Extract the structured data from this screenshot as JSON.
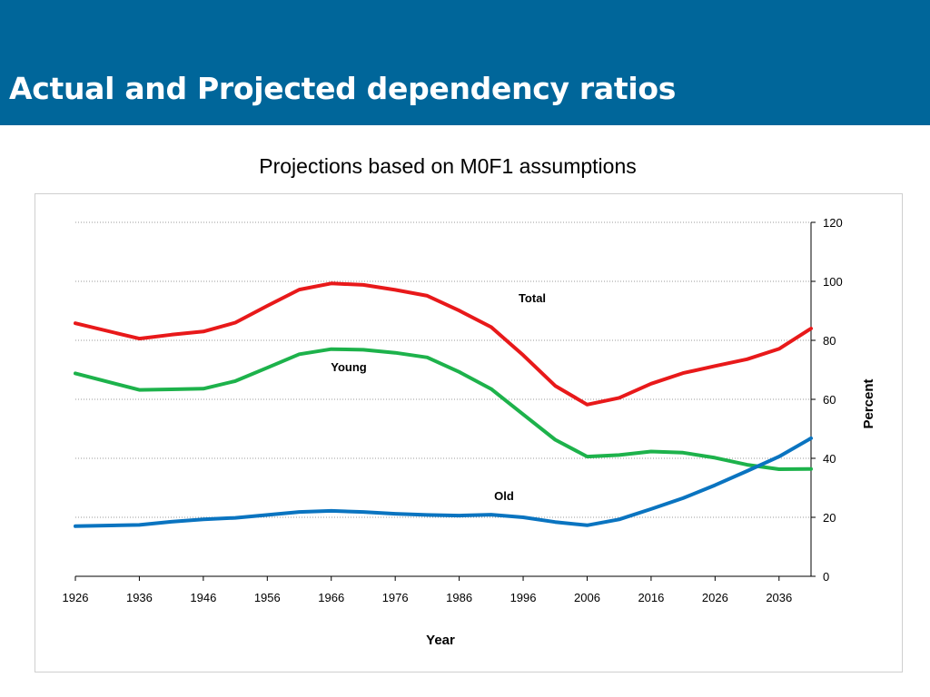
{
  "header": {
    "title": "Actual and Projected dependency ratios"
  },
  "chart_data": {
    "type": "line",
    "title": "Projections based on M0F1 assumptions",
    "xlabel": "Year",
    "ylabel": "Percent",
    "xlim": [
      1926,
      2041
    ],
    "ylim": [
      0,
      120
    ],
    "x_ticks": [
      1926,
      1936,
      1946,
      1956,
      1966,
      1976,
      1986,
      1996,
      2006,
      2016,
      2026,
      2036
    ],
    "x_tick_labels": [
      "1926",
      "1936",
      "1946",
      "1956",
      "1966",
      "1976",
      "1986",
      "1996",
      "2006",
      "2016",
      "2026",
      "2036"
    ],
    "y_ticks": [
      0,
      20,
      40,
      60,
      80,
      100,
      120
    ],
    "y_tick_labels": [
      "0",
      "20",
      "40",
      "60",
      "80",
      "100",
      "120"
    ],
    "y_axis_side": "right",
    "grid": {
      "horizontal": true,
      "style": "dotted"
    },
    "x": [
      1926,
      1936,
      1941,
      1946,
      1951,
      1956,
      1961,
      1966,
      1971,
      1976,
      1981,
      1986,
      1991,
      1996,
      2001,
      2006,
      2011,
      2016,
      2021,
      2026,
      2031,
      2036,
      2041
    ],
    "series": [
      {
        "name": "Total",
        "color": "#e8191a",
        "values": [
          85.8,
          80.6,
          81.9,
          83.0,
          86.0,
          91.7,
          97.2,
          99.3,
          98.8,
          97.1,
          95.1,
          90.1,
          84.5,
          75.0,
          64.6,
          58.2,
          60.5,
          65.3,
          68.9,
          71.3,
          73.6,
          77.1,
          84.0
        ]
      },
      {
        "name": "Young",
        "color": "#1db24b",
        "values": [
          68.8,
          63.2,
          63.4,
          63.6,
          66.2,
          70.7,
          75.3,
          77.0,
          76.8,
          75.8,
          74.2,
          69.3,
          63.5,
          54.9,
          46.3,
          40.6,
          41.1,
          42.3,
          41.9,
          40.2,
          37.8,
          36.3,
          36.4
        ]
      },
      {
        "name": "Old",
        "color": "#0a74c0",
        "values": [
          17.0,
          17.4,
          18.5,
          19.3,
          19.8,
          20.8,
          21.8,
          22.2,
          21.8,
          21.2,
          20.8,
          20.6,
          20.9,
          20.0,
          18.4,
          17.3,
          19.3,
          22.8,
          26.5,
          30.9,
          35.7,
          40.6,
          46.8
        ]
      }
    ],
    "annotations": [
      {
        "series": "Total",
        "text": "Total"
      },
      {
        "series": "Young",
        "text": "Young"
      },
      {
        "series": "Old",
        "text": "Old"
      }
    ]
  }
}
